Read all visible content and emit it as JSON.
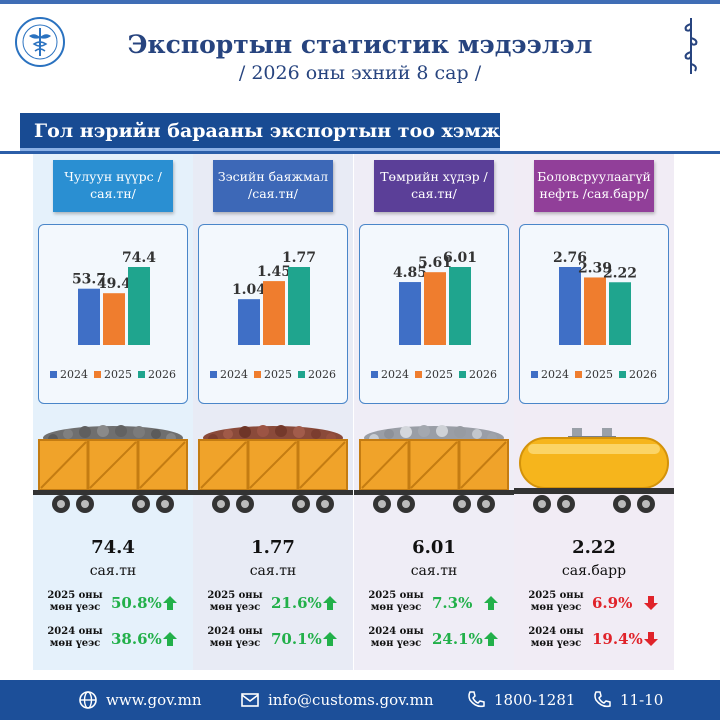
{
  "header": {
    "title": "Экспортын статистик мэдээлэл",
    "subtitle": "/ 2026 оны эхний 8 сар /"
  },
  "banner": {
    "title": "Гол нэрийн барааны экспортын тоо хэмжээ"
  },
  "colors": {
    "primary": "#184b93",
    "series_2024": "#3f6fc6",
    "series_2025": "#ef7d2e",
    "series_2026": "#1fa58e",
    "increase": "#22b04a",
    "decrease": "#e0232a"
  },
  "chart_data": [
    {
      "type": "bar",
      "title": "Чулуун нүүрс /сая.тн/",
      "series": [
        {
          "name": "2024",
          "values": [
            53.7
          ]
        },
        {
          "name": "2025",
          "values": [
            49.4
          ]
        },
        {
          "name": "2026",
          "values": [
            74.4
          ]
        }
      ],
      "value_labels": [
        "53.7",
        "49.4",
        "74.4"
      ],
      "legend": [
        "2024",
        "2025",
        "2026"
      ],
      "legend_position": "bottom",
      "ylim": [
        0,
        74.4
      ]
    },
    {
      "type": "bar",
      "title": "Зэсийн баяжмал /сая.тн/",
      "series": [
        {
          "name": "2024",
          "values": [
            1.04
          ]
        },
        {
          "name": "2025",
          "values": [
            1.45
          ]
        },
        {
          "name": "2026",
          "values": [
            1.77
          ]
        }
      ],
      "value_labels": [
        "1.04",
        "1.45",
        "1.77"
      ],
      "legend": [
        "2024",
        "2025",
        "2026"
      ],
      "legend_position": "bottom",
      "ylim": [
        0,
        1.77
      ]
    },
    {
      "type": "bar",
      "title": "Төмрийн хүдэр /сая.тн/",
      "series": [
        {
          "name": "2024",
          "values": [
            4.85
          ]
        },
        {
          "name": "2025",
          "values": [
            5.61
          ]
        },
        {
          "name": "2026",
          "values": [
            6.01
          ]
        }
      ],
      "value_labels": [
        "4.85",
        "5.61",
        "6.01"
      ],
      "legend": [
        "2024",
        "2025",
        "2026"
      ],
      "legend_position": "bottom",
      "ylim": [
        0,
        6.01
      ]
    },
    {
      "type": "bar",
      "title": "Боловсруулаагүй нефть /сая.барр/",
      "series": [
        {
          "name": "2024",
          "values": [
            2.76
          ]
        },
        {
          "name": "2025",
          "values": [
            2.39
          ]
        },
        {
          "name": "2026",
          "values": [
            2.22
          ]
        }
      ],
      "value_labels": [
        "2.76",
        "2.39",
        "2.22"
      ],
      "legend": [
        "2024",
        "2025",
        "2026"
      ],
      "legend_position": "bottom",
      "ylim": [
        0,
        2.76
      ]
    }
  ],
  "products": [
    {
      "label": "Чулуун нүүрс /сая.тн/",
      "cargo_icon": "coal-wagon-icon",
      "value": "74.4",
      "unit": "сая.тн",
      "cmp1_label": "2025 оны мөн үеэс",
      "cmp1_pct": "50.8%",
      "cmp1_dir": "up",
      "cmp2_label": "2024 оны мөн үеэс",
      "cmp2_pct": "38.6%",
      "cmp2_dir": "up"
    },
    {
      "label": "Зэсийн баяжмал /сая.тн/",
      "cargo_icon": "copper-wagon-icon",
      "value": "1.77",
      "unit": "сая.тн",
      "cmp1_label": "2025 оны мөн үеэс",
      "cmp1_pct": "21.6%",
      "cmp1_dir": "up",
      "cmp2_label": "2024 оны мөн үеэс",
      "cmp2_pct": "70.1%",
      "cmp2_dir": "up"
    },
    {
      "label": "Төмрийн хүдэр /сая.тн/",
      "cargo_icon": "iron-ore-wagon-icon",
      "value": "6.01",
      "unit": "сая.тн",
      "cmp1_label": "2025 оны мөн үеэс",
      "cmp1_pct": "7.3%",
      "cmp1_dir": "up",
      "cmp2_label": "2024 оны мөн үеэс",
      "cmp2_pct": "24.1%",
      "cmp2_dir": "up"
    },
    {
      "label": "Боловсруулаагүй нефть /сая.барр/",
      "cargo_icon": "oil-tank-wagon-icon",
      "value": "2.22",
      "unit": "сая.барр",
      "cmp1_label": "2025 оны мөн үеэс",
      "cmp1_pct": "6.9%",
      "cmp1_dir": "down",
      "cmp2_label": "2024 оны мөн үеэс",
      "cmp2_pct": "19.4%",
      "cmp2_dir": "down"
    }
  ],
  "footer": {
    "website": "www.gov.mn",
    "email": "info@customs.gov.mn",
    "phone1": "1800-1281",
    "phone2": "11-10"
  }
}
